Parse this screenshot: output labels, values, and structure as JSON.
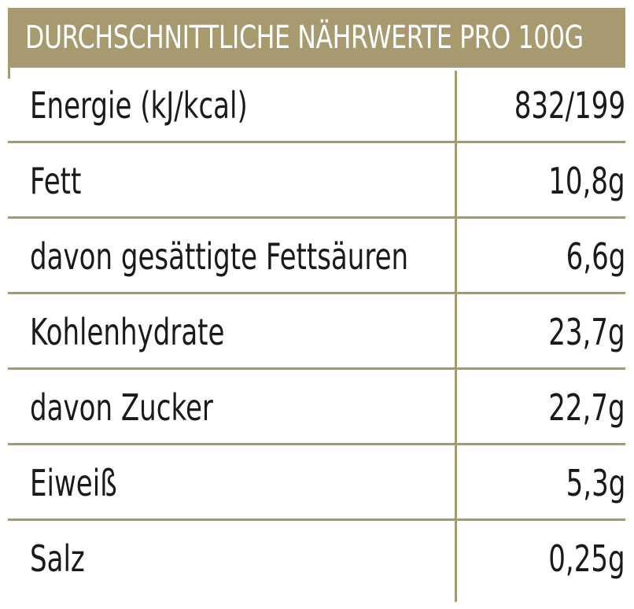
{
  "header": {
    "title": "DURCHSCHNITTLICHE NÄHRWERTE PRO 100G"
  },
  "rows": [
    {
      "label": "Energie (kJ/kcal)",
      "value": "832/199"
    },
    {
      "label": "Fett",
      "value": "10,8g"
    },
    {
      "label": "davon gesättigte Fettsäuren",
      "value": "6,6g"
    },
    {
      "label": "Kohlenhydrate",
      "value": "23,7g"
    },
    {
      "label": "davon Zucker",
      "value": "22,7g"
    },
    {
      "label": "Eiweiß",
      "value": "5,3g"
    },
    {
      "label": "Salz",
      "value": "0,25g"
    }
  ],
  "colors": {
    "accent": "#a79a6f",
    "text": "#1a1a1a",
    "header_text": "#ffffff"
  }
}
